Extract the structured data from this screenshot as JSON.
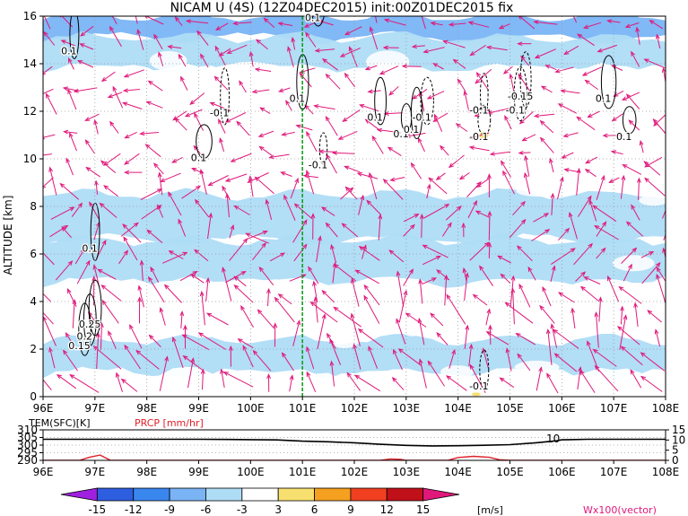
{
  "chart_data": [
    {
      "type": "heatmap",
      "title": "NICAM U (4S) (12Z04DEC2015) init:00Z01DEC2015 fix",
      "xlabel": "",
      "ylabel": "ALTITUDE [km]",
      "x_ticks": [
        "96E",
        "97E",
        "98E",
        "99E",
        "100E",
        "101E",
        "102E",
        "103E",
        "104E",
        "105E",
        "106E",
        "107E",
        "108E"
      ],
      "xlim": [
        96,
        108
      ],
      "y_ticks": [
        "0",
        "2",
        "4",
        "6",
        "8",
        "10",
        "12",
        "14",
        "16"
      ],
      "ylim": [
        0,
        16
      ],
      "grid": true,
      "reference_line_lon": 101,
      "u_bands": [
        {
          "y0": 15.1,
          "y1": 16.0,
          "value": -9
        },
        {
          "y0": 13.8,
          "y1": 15.1,
          "value": -6
        },
        {
          "y0": 12.4,
          "y1": 13.8,
          "value": -3
        },
        {
          "y0": 8.5,
          "y1": 9.4,
          "value": -3
        },
        {
          "y0": 6.6,
          "y1": 8.5,
          "value": -6
        },
        {
          "y0": 4.8,
          "y1": 6.6,
          "value": -6
        },
        {
          "y0": 4.0,
          "y1": 4.8,
          "value": -3
        },
        {
          "y0": 2.4,
          "y1": 3.4,
          "value": -3
        },
        {
          "y0": 1.0,
          "y1": 2.4,
          "value": -6
        },
        {
          "y0": 0.2,
          "y1": 1.0,
          "value": -3
        }
      ],
      "contour_labels": [
        {
          "text": "0.1",
          "lon": 96.5,
          "alt": 14.4
        },
        {
          "text": "-0.1",
          "lon": 99.4,
          "alt": 11.8
        },
        {
          "text": "0.1",
          "lon": 99.0,
          "alt": 9.9
        },
        {
          "text": "0.1",
          "lon": 101.2,
          "alt": 15.8
        },
        {
          "text": "-0.1",
          "lon": 101.3,
          "alt": 9.6
        },
        {
          "text": "0.1",
          "lon": 100.9,
          "alt": 12.4
        },
        {
          "text": "0.1",
          "lon": 102.4,
          "alt": 11.6
        },
        {
          "text": "0.1",
          "lon": 102.9,
          "alt": 10.9
        },
        {
          "text": "-0.1",
          "lon": 103.3,
          "alt": 11.6
        },
        {
          "text": "0.1",
          "lon": 103.1,
          "alt": 11.1
        },
        {
          "text": "-0.15",
          "lon": 105.2,
          "alt": 12.5
        },
        {
          "text": "-0.1",
          "lon": 105.1,
          "alt": 11.9
        },
        {
          "text": "-0.1",
          "lon": 104.4,
          "alt": 11.9
        },
        {
          "text": "-0.1",
          "lon": 104.4,
          "alt": 10.8
        },
        {
          "text": "0.1",
          "lon": 106.8,
          "alt": 12.4
        },
        {
          "text": "0.1",
          "lon": 107.2,
          "alt": 10.8
        },
        {
          "text": "0.1",
          "lon": 96.9,
          "alt": 6.1
        },
        {
          "text": "0.25",
          "lon": 96.9,
          "alt": 2.9
        },
        {
          "text": "0.2",
          "lon": 96.8,
          "alt": 2.4
        },
        {
          "text": "0.15",
          "lon": 96.7,
          "alt": 2.0
        },
        {
          "text": "-0.1",
          "lon": 104.4,
          "alt": 0.3
        }
      ],
      "colorbar": {
        "ticks": [
          "-15",
          "-12",
          "-9",
          "-6",
          "-3",
          "3",
          "6",
          "9",
          "12",
          "15"
        ],
        "unit": "[m/s]",
        "colors": [
          "#a020e0",
          "#2e5ee0",
          "#3a86ef",
          "#7ab4f5",
          "#aedcf5",
          "#ffffff",
          "#f8e070",
          "#f5a020",
          "#f04020",
          "#c0101a",
          "#e0187a"
        ]
      },
      "vector_label": "Wx100(vector)"
    },
    {
      "type": "line",
      "title": "",
      "x_ticks": [
        "96E",
        "97E",
        "98E",
        "99E",
        "100E",
        "101E",
        "102E",
        "103E",
        "104E",
        "105E",
        "106E",
        "107E",
        "108E"
      ],
      "xlim": [
        96,
        108
      ],
      "left_axis_label": "TEM(SFC)[K]",
      "left_ticks": [
        "310",
        "305",
        "300",
        "295",
        "290"
      ],
      "left_ylim": [
        290,
        310
      ],
      "right_axis_label": "PRCP [mm/hr]",
      "right_ticks": [
        "15",
        "10",
        "5",
        "0"
      ],
      "right_ylim": [
        0,
        15
      ],
      "annotation": "10",
      "series": [
        {
          "name": "TEM(SFC)[K]",
          "color": "#000000",
          "x": [
            96,
            97,
            98,
            99,
            100,
            100.5,
            101,
            101.5,
            102,
            102.5,
            103,
            103.5,
            104,
            104.5,
            105,
            105.5,
            105.9,
            106,
            106.5,
            107,
            108
          ],
          "y": [
            303.8,
            303.8,
            303.8,
            303.8,
            303.6,
            303.4,
            302.6,
            302.2,
            301.5,
            300.5,
            299.8,
            299.5,
            299.6,
            299.9,
            300.3,
            301.5,
            302.8,
            303.5,
            303.8,
            303.8,
            303.8
          ]
        },
        {
          "name": "PRCP [mm/hr]",
          "color": "#e0202a",
          "x": [
            96,
            96.7,
            96.9,
            97.1,
            97.3,
            98,
            102.5,
            102.7,
            102.9,
            103,
            103.8,
            104,
            104.3,
            104.6,
            104.8,
            105,
            108
          ],
          "y": [
            0,
            0,
            1.6,
            2.6,
            0,
            0,
            0,
            0.7,
            0.5,
            0,
            0,
            1.4,
            2.0,
            1.5,
            0.3,
            0,
            0
          ]
        }
      ]
    }
  ]
}
